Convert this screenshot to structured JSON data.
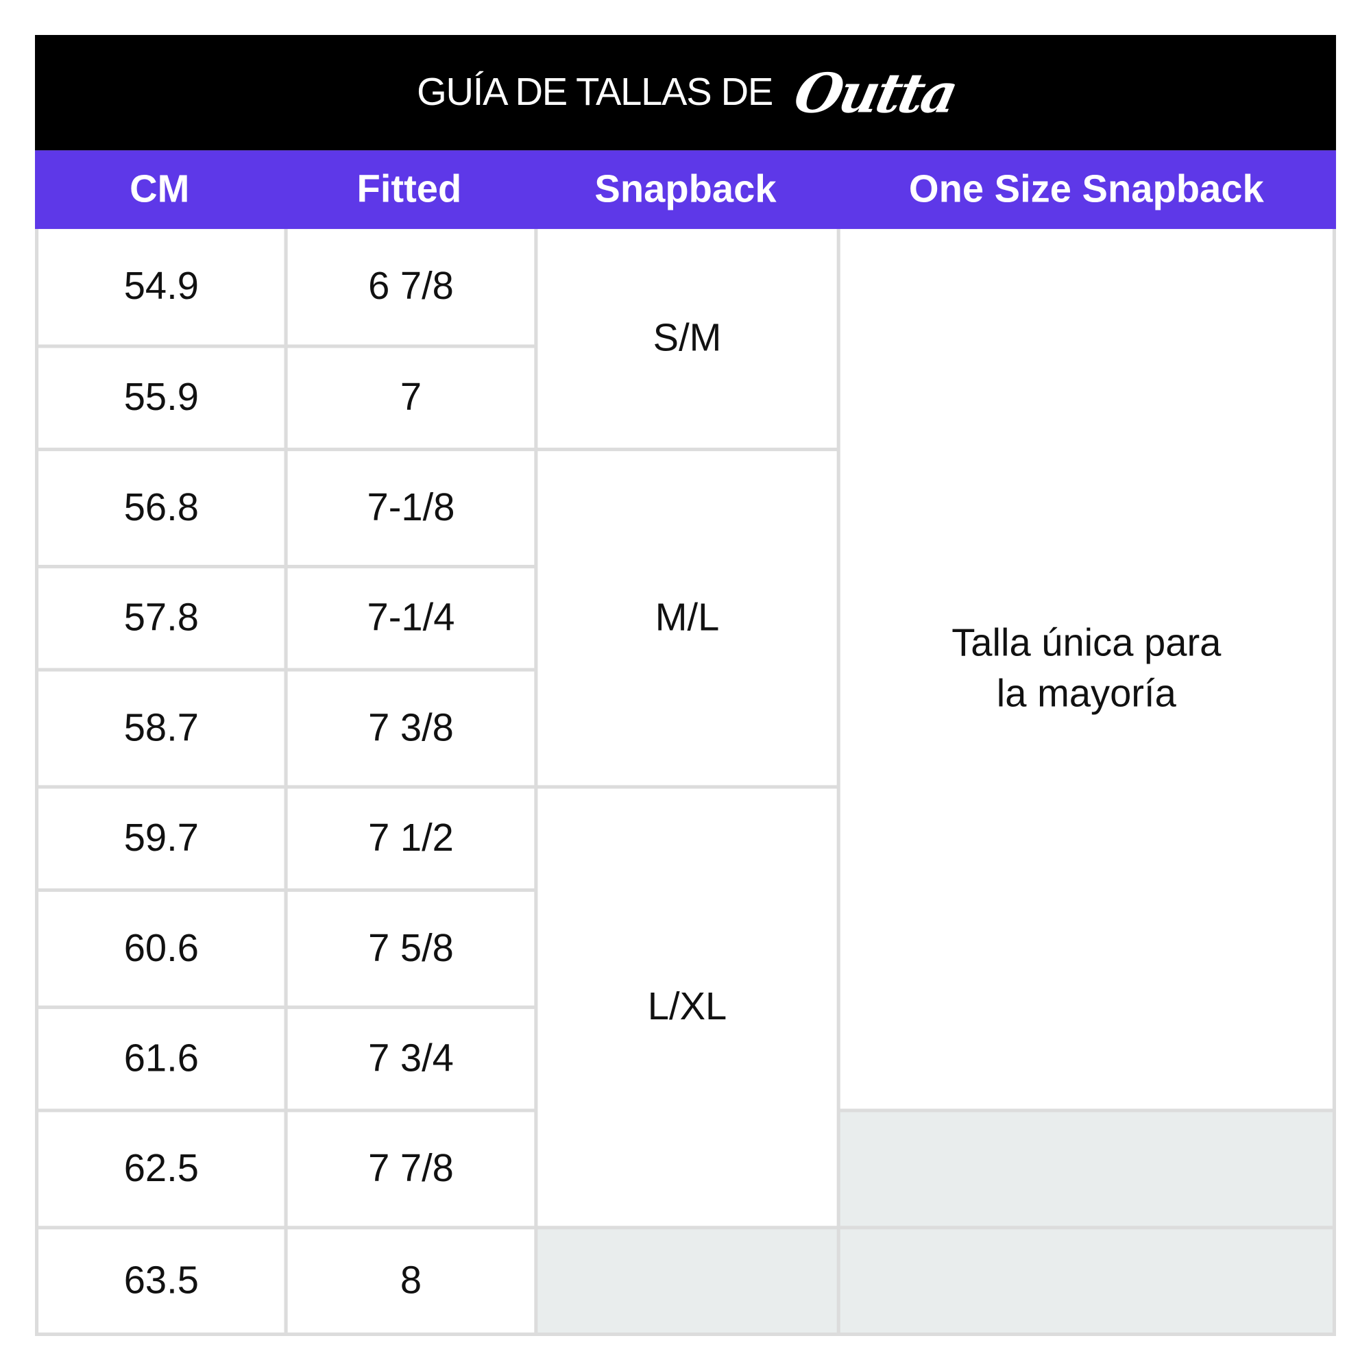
{
  "title": {
    "text": "GUÍA DE TALLAS DE",
    "logo": "Outta"
  },
  "colors": {
    "header_bg": "#000000",
    "column_header_bg": "#5e38e8",
    "empty_cell": "#e9eded",
    "grid": "#dcdcdc"
  },
  "columns": [
    "CM",
    "Fitted",
    "Snapback",
    "One Size Snapback"
  ],
  "rows": [
    {
      "cm": "54.9",
      "fitted": "6 7/8"
    },
    {
      "cm": "55.9",
      "fitted": "7"
    },
    {
      "cm": "56.8",
      "fitted": "7-1/8"
    },
    {
      "cm": "57.8",
      "fitted": "7-1/4"
    },
    {
      "cm": "58.7",
      "fitted": "7 3/8"
    },
    {
      "cm": "59.7",
      "fitted": "7 1/2"
    },
    {
      "cm": "60.6",
      "fitted": "7 5/8"
    },
    {
      "cm": "61.6",
      "fitted": "7 3/4"
    },
    {
      "cm": "62.5",
      "fitted": "7 7/8"
    },
    {
      "cm": "63.5",
      "fitted": "8"
    }
  ],
  "snapback": [
    "S/M",
    "M/L",
    "L/XL"
  ],
  "one_size": "Talla única para la mayoría"
}
